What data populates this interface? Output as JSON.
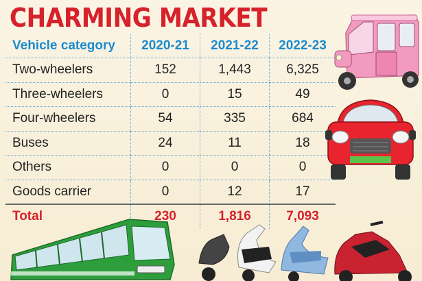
{
  "title": "CHARMING MARKET",
  "table": {
    "header": {
      "category": "Vehicle category",
      "years": [
        "2020-21",
        "2021-22",
        "2022-23"
      ]
    },
    "rows": [
      {
        "label": "Two-wheelers",
        "values": [
          "152",
          "1,443",
          "6,325"
        ]
      },
      {
        "label": "Three-wheelers",
        "values": [
          "0",
          "15",
          "49"
        ]
      },
      {
        "label": "Four-wheelers",
        "values": [
          "54",
          "335",
          "684"
        ]
      },
      {
        "label": "Buses",
        "values": [
          "24",
          "11",
          "18"
        ]
      },
      {
        "label": "Others",
        "values": [
          "0",
          "0",
          "0"
        ]
      },
      {
        "label": "Goods carrier",
        "values": [
          "0",
          "12",
          "17"
        ]
      }
    ],
    "total": {
      "label": "Total",
      "values": [
        "230",
        "1,816",
        "7,093"
      ]
    }
  },
  "chart_data": {
    "type": "table",
    "columns": [
      "Vehicle category",
      "2020-21",
      "2021-22",
      "2022-23"
    ],
    "rows": [
      [
        "Two-wheelers",
        152,
        1443,
        6325
      ],
      [
        "Three-wheelers",
        0,
        15,
        49
      ],
      [
        "Four-wheelers",
        54,
        335,
        684
      ],
      [
        "Buses",
        24,
        11,
        18
      ],
      [
        "Others",
        0,
        0,
        0
      ],
      [
        "Goods carrier",
        0,
        12,
        17
      ],
      [
        "Total",
        230,
        1816,
        7093
      ]
    ]
  },
  "colors": {
    "title": "#d5222b",
    "header": "#1b8bd0",
    "total": "#d5222b",
    "rickshaw": "#f08ab4",
    "car": "#e8252e",
    "bus": "#2e9e3d",
    "background": "#fbf4e4"
  },
  "illustrations": [
    "electric-rickshaw-icon",
    "electric-car-icon",
    "electric-bus-icon",
    "electric-scooters-icon"
  ]
}
